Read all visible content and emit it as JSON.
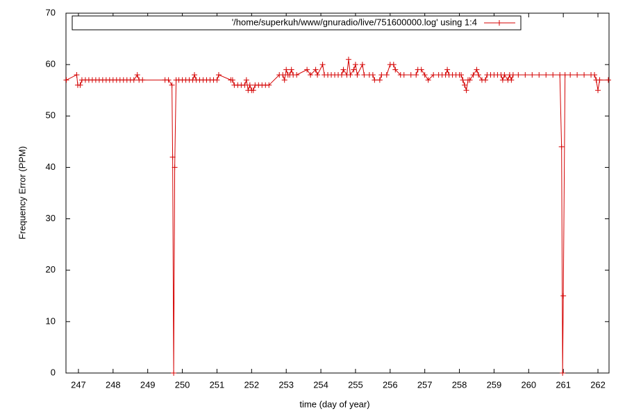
{
  "chart_data": {
    "type": "line",
    "xlabel": "time (day of year)",
    "ylabel": "Frequency Error (PPM)",
    "xlim": [
      246.64,
      262.32
    ],
    "ylim": [
      0,
      70
    ],
    "xticks": [
      247,
      248,
      249,
      250,
      251,
      252,
      253,
      254,
      255,
      256,
      257,
      258,
      259,
      260,
      261,
      262
    ],
    "yticks": [
      0,
      10,
      20,
      30,
      40,
      50,
      60,
      70
    ],
    "grid": false,
    "legend": "top",
    "x": [
      246.65,
      246.95,
      246.98,
      247.05,
      247.1,
      247.2,
      247.3,
      247.4,
      247.5,
      247.6,
      247.7,
      247.8,
      247.9,
      248.0,
      248.1,
      248.2,
      248.3,
      248.4,
      248.5,
      248.6,
      248.7,
      248.75,
      248.85,
      249.5,
      249.6,
      249.7,
      249.72,
      249.75,
      249.78,
      249.82,
      249.9,
      250.0,
      250.1,
      250.2,
      250.3,
      250.35,
      250.4,
      250.5,
      250.6,
      250.7,
      250.8,
      250.9,
      251.0,
      251.05,
      251.4,
      251.45,
      251.5,
      251.6,
      251.7,
      251.8,
      251.85,
      251.9,
      251.95,
      252.0,
      252.05,
      252.1,
      252.2,
      252.3,
      252.4,
      252.5,
      252.8,
      252.9,
      252.95,
      253.0,
      253.05,
      253.1,
      253.15,
      253.2,
      253.3,
      253.6,
      253.7,
      253.85,
      253.9,
      254.05,
      254.1,
      254.2,
      254.3,
      254.4,
      254.5,
      254.6,
      254.65,
      254.75,
      254.8,
      254.85,
      254.95,
      255.0,
      255.05,
      255.2,
      255.25,
      255.4,
      255.5,
      255.55,
      255.7,
      255.75,
      255.9,
      256.0,
      256.1,
      256.15,
      256.3,
      256.4,
      256.6,
      256.75,
      256.8,
      256.9,
      257.0,
      257.1,
      257.25,
      257.4,
      257.5,
      257.6,
      257.65,
      257.7,
      257.8,
      257.9,
      258.0,
      258.05,
      258.1,
      258.15,
      258.2,
      258.25,
      258.3,
      258.4,
      258.5,
      258.55,
      258.65,
      258.75,
      258.8,
      258.9,
      259.0,
      259.1,
      259.2,
      259.25,
      259.3,
      259.4,
      259.45,
      259.5,
      259.55,
      259.7,
      259.9,
      260.1,
      260.3,
      260.5,
      260.7,
      260.9,
      260.95,
      260.98,
      261.0,
      261.05,
      261.2,
      261.4,
      261.6,
      261.8,
      261.9,
      261.95,
      262.0,
      262.05,
      262.3
    ],
    "series": [
      {
        "name": "'/home/superkuh/www/gnuradio/live/751600000.log' using 1:4",
        "color": "#d40000",
        "values": [
          57,
          58,
          56,
          56,
          57,
          57,
          57,
          57,
          57,
          57,
          57,
          57,
          57,
          57,
          57,
          57,
          57,
          57,
          57,
          57,
          58,
          57,
          57,
          57,
          57,
          56,
          42,
          0,
          40,
          57,
          57,
          57,
          57,
          57,
          57,
          58,
          57,
          57,
          57,
          57,
          57,
          57,
          57,
          58,
          57,
          57,
          56,
          56,
          56,
          56,
          57,
          55,
          56,
          55,
          55,
          56,
          56,
          56,
          56,
          56,
          58,
          58,
          57,
          59,
          58,
          58,
          59,
          58,
          58,
          59,
          58,
          59,
          58,
          60,
          58,
          58,
          58,
          58,
          58,
          58,
          59,
          58,
          61,
          58,
          59,
          60,
          58,
          60,
          58,
          58,
          58,
          57,
          57,
          58,
          58,
          60,
          60,
          59,
          58,
          58,
          58,
          58,
          59,
          59,
          58,
          57,
          58,
          58,
          58,
          58,
          59,
          58,
          58,
          58,
          58,
          58,
          57,
          56,
          55,
          57,
          57,
          58,
          59,
          58,
          57,
          57,
          58,
          58,
          58,
          58,
          58,
          57,
          58,
          57,
          58,
          57,
          58,
          58,
          58,
          58,
          58,
          58,
          58,
          58,
          44,
          0,
          15,
          58,
          58,
          58,
          58,
          58,
          58,
          57,
          55,
          57,
          57
        ]
      }
    ]
  }
}
